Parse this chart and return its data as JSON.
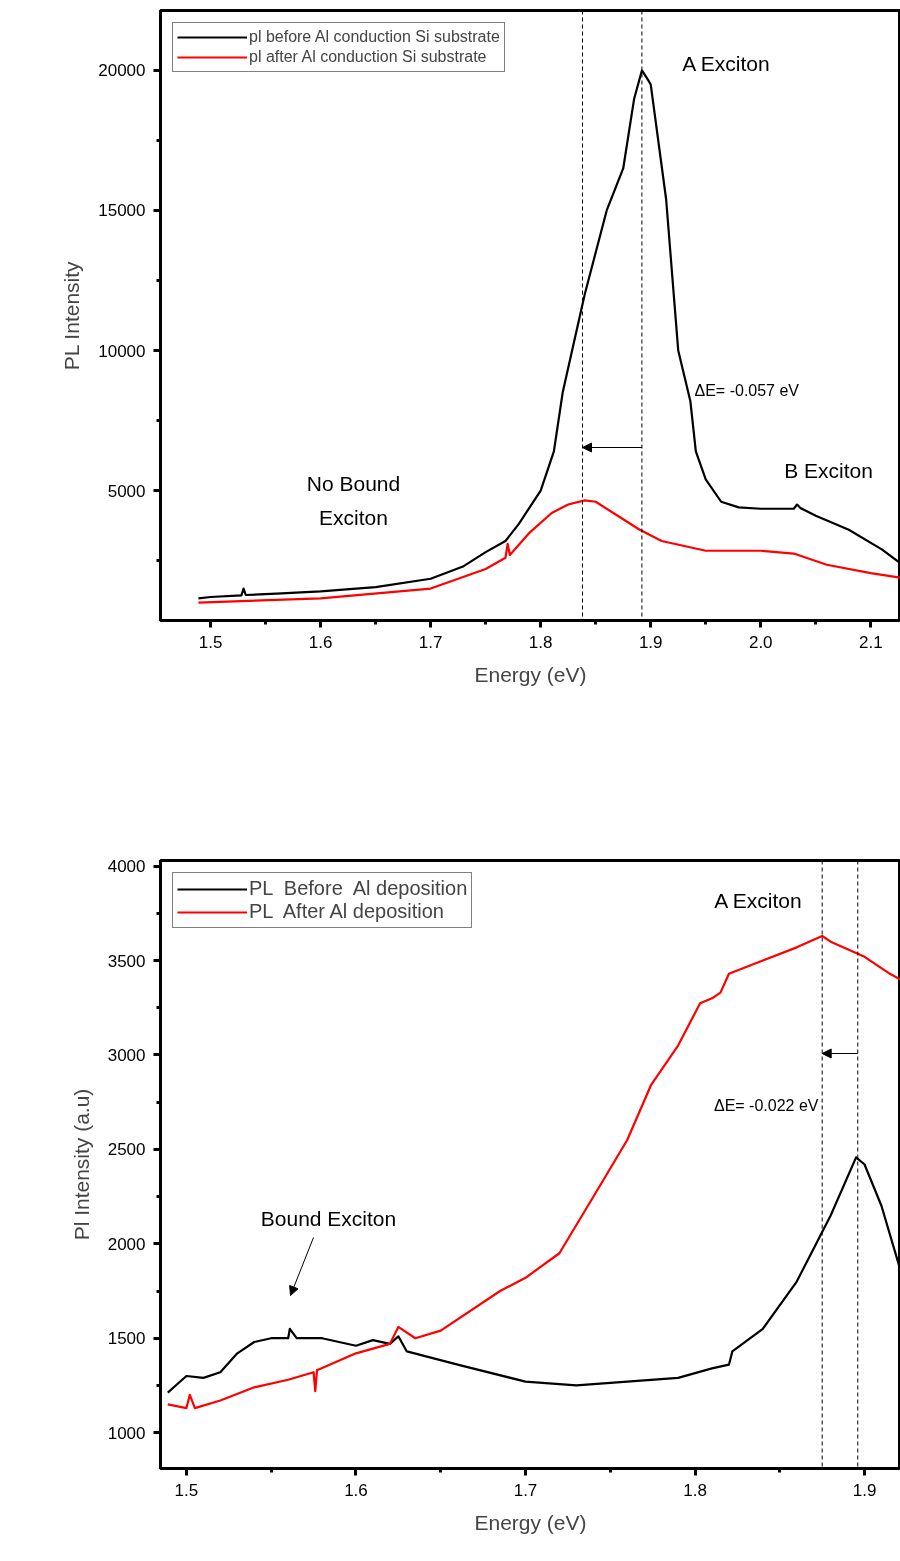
{
  "chart_data": [
    {
      "type": "line",
      "xlabel": "Energy (eV)",
      "ylabel": "PL Intensity",
      "xlim": [
        1.4545,
        2.127
      ],
      "ylim": [
        360,
        22140
      ],
      "xticks": [
        1.5,
        {
          "value": 1.55,
          "label": null
        },
        1.6,
        {
          "value": 1.65,
          "label": null
        },
        1.7,
        {
          "value": 1.75,
          "label": null
        },
        1.8,
        {
          "value": 1.85,
          "label": null
        },
        1.9,
        {
          "value": 1.95,
          "label": null
        },
        {
          "value": 2.0,
          "label": "2.0"
        },
        {
          "value": 2.05,
          "label": null
        },
        2.1
      ],
      "yticks": [
        {
          "value": 2500,
          "label": null
        },
        5000,
        {
          "value": 7500,
          "label": null
        },
        10000,
        {
          "value": 12500,
          "label": null
        },
        15000,
        {
          "value": 17500,
          "label": null
        },
        20000
      ],
      "grid": false,
      "legend": "top left",
      "marker": "none",
      "line_style": "solid",
      "series": [
        {
          "name": "pl before Al conduction Si substrate",
          "color": "#000000",
          "x": [
            1.489,
            1.5,
            1.528,
            1.53,
            1.532,
            1.56,
            1.6,
            1.65,
            1.7,
            1.73,
            1.75,
            1.768,
            1.78,
            1.8,
            1.812,
            1.82,
            1.84,
            1.86,
            1.875,
            1.885,
            1.892,
            1.897,
            1.9,
            1.914,
            1.925,
            1.936,
            1.941,
            1.95,
            1.964,
            1.98,
            2.0,
            2.03,
            2.033,
            2.036,
            2.05,
            2.08,
            2.11,
            2.127
          ],
          "values": [
            1150,
            1200,
            1260,
            1500,
            1270,
            1320,
            1400,
            1550,
            1850,
            2300,
            2800,
            3200,
            3800,
            5000,
            6400,
            8500,
            12000,
            15000,
            16500,
            19000,
            20000,
            19700,
            19500,
            15400,
            10000,
            8200,
            6400,
            5400,
            4600,
            4400,
            4350,
            4350,
            4500,
            4380,
            4100,
            3600,
            2900,
            2400
          ]
        },
        {
          "name": "pl after Al conduction Si substrate",
          "color": "#ff0000",
          "x": [
            1.489,
            1.6,
            1.7,
            1.75,
            1.768,
            1.77,
            1.772,
            1.79,
            1.81,
            1.825,
            1.84,
            1.85,
            1.87,
            1.89,
            1.91,
            1.95,
            2.0,
            2.03,
            2.06,
            2.1,
            2.127
          ],
          "values": [
            1000,
            1150,
            1500,
            2200,
            2600,
            3100,
            2700,
            3500,
            4200,
            4500,
            4650,
            4600,
            4100,
            3600,
            3200,
            2850,
            2850,
            2750,
            2350,
            2050,
            1890
          ]
        }
      ],
      "ref_lines": [
        {
          "axis": "x",
          "value": 1.892,
          "label": null,
          "color": "#000000",
          "line_style": "dashed"
        },
        {
          "axis": "x",
          "value": 1.838,
          "label": null,
          "color": "#000000",
          "line_style": "dashed"
        }
      ],
      "annotations": [
        "A Exciton",
        "ΔE= -0.057 eV",
        "No Bound Exciton",
        "B Exciton"
      ]
    },
    {
      "type": "line",
      "xlabel": "Energy (eV)",
      "ylabel": "Pl Intensity (a.u)",
      "xlim": [
        1.4847,
        1.9212
      ],
      "ylim": [
        810,
        4030
      ],
      "xticks": [
        1.5,
        {
          "value": 1.55,
          "label": null
        },
        1.6,
        {
          "value": 1.65,
          "label": null
        },
        1.7,
        {
          "value": 1.75,
          "label": null
        },
        1.8,
        {
          "value": 1.85,
          "label": null
        },
        1.9
      ],
      "yticks": [
        1000,
        {
          "value": 1250,
          "label": null
        },
        1500,
        {
          "value": 1750,
          "label": null
        },
        2000,
        {
          "value": 2250,
          "label": null
        },
        2500,
        {
          "value": 2750,
          "label": null
        },
        3000,
        {
          "value": 3250,
          "label": null
        },
        3500,
        {
          "value": 3750,
          "label": null
        },
        4000
      ],
      "grid": false,
      "legend": "top left",
      "marker": "none",
      "line_style": "solid",
      "series": [
        {
          "name": "PL  Before  Al deposition",
          "color": "#000000",
          "x": [
            1.489,
            1.495,
            1.5,
            1.51,
            1.52,
            1.53,
            1.54,
            1.55,
            1.56,
            1.561,
            1.565,
            1.58,
            1.6,
            1.61,
            1.62,
            1.625,
            1.63,
            1.66,
            1.7,
            1.73,
            1.76,
            1.79,
            1.81,
            1.82,
            1.822,
            1.84,
            1.86,
            1.88,
            1.895,
            1.9,
            1.91,
            1.9212
          ],
          "values": [
            1212,
            1260,
            1300,
            1290,
            1320,
            1420,
            1480,
            1500,
            1500,
            1550,
            1500,
            1500,
            1460,
            1490,
            1470,
            1510,
            1430,
            1360,
            1270,
            1250,
            1270,
            1290,
            1340,
            1360,
            1430,
            1550,
            1800,
            2150,
            2458,
            2420,
            2200,
            1859
          ]
        },
        {
          "name": "PL  After Al deposition",
          "color": "#ff0000",
          "x": [
            1.489,
            1.5,
            1.502,
            1.505,
            1.52,
            1.54,
            1.56,
            1.575,
            1.576,
            1.577,
            1.6,
            1.62,
            1.625,
            1.635,
            1.65,
            1.685,
            1.7,
            1.72,
            1.744,
            1.76,
            1.774,
            1.79,
            1.803,
            1.81,
            1.815,
            1.82,
            1.84,
            1.86,
            1.875,
            1.88,
            1.9,
            1.915,
            1.9212
          ],
          "values": [
            1150,
            1130,
            1200,
            1130,
            1170,
            1240,
            1280,
            1320,
            1220,
            1330,
            1420,
            1470,
            1560,
            1500,
            1540,
            1750,
            1820,
            1950,
            2309,
            2550,
            2840,
            3050,
            3274,
            3300,
            3330,
            3430,
            3500,
            3570,
            3630,
            3600,
            3520,
            3430,
            3400
          ]
        }
      ],
      "ref_lines": [
        {
          "axis": "x",
          "value": 1.896,
          "label": null,
          "color": "#000000",
          "line_style": "dashed"
        },
        {
          "axis": "x",
          "value": 1.875,
          "label": null,
          "color": "#000000",
          "line_style": "dashed"
        }
      ],
      "annotations": [
        "A Exciton",
        "ΔE= -0.022 eV",
        "Bound Exciton"
      ]
    }
  ]
}
